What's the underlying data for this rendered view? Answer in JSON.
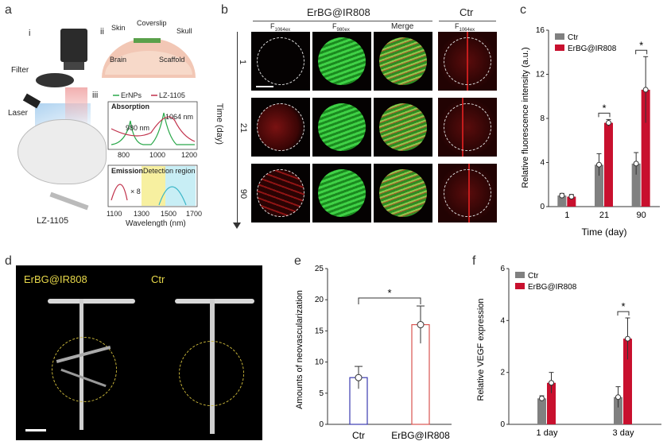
{
  "panels": {
    "a": "a",
    "b": "b",
    "c": "c",
    "d": "d",
    "e": "e",
    "f": "f"
  },
  "panel_a": {
    "i": "i",
    "ii": "ii",
    "iii": "iii",
    "filter": "Filter",
    "laser": "Laser",
    "mouse": "LZ-1105",
    "skin": "Skin",
    "coverslip": "Coverslip",
    "skull": "Skull",
    "brain": "Brain",
    "scaffold": "Scaffold",
    "legend_er": "ErNPs",
    "legend_lz": "LZ-1105",
    "absorption": "Absorption",
    "emission": "Emission",
    "nm980": "980 nm",
    "nm1064": "1064 nm",
    "detection": "Detection region",
    "times8": "× 8",
    "abs_ticks": [
      "800",
      "1000",
      "1200"
    ],
    "em_ticks": [
      "1100",
      "1300",
      "1500",
      "1700"
    ],
    "xlabel": "Wavelength (nm)"
  },
  "panel_b": {
    "group1": "ErBG@IR808",
    "group2": "Ctr",
    "col1": "F",
    "col1_sub": "1064ex",
    "col2": "F",
    "col2_sub": "980ex",
    "col3": "Merge",
    "col4": "F",
    "col4_sub": "1064ex",
    "rows": [
      "1",
      "21",
      "90"
    ],
    "ylabel": "Time (day)"
  },
  "panel_d": {
    "label1": "ErBG@IR808",
    "label2": "Ctr"
  },
  "chart_data": [
    {
      "id": "c",
      "type": "bar",
      "categories": [
        "1",
        "21",
        "90"
      ],
      "xlabel": "Time (day)",
      "ylabel": "Relative fluorescence intensity (a.u.)",
      "ylim": [
        0,
        16
      ],
      "yticks": [
        0,
        4,
        8,
        12,
        16
      ],
      "series": [
        {
          "name": "Ctr",
          "color": "#808080",
          "values": [
            1.0,
            3.8,
            3.9
          ],
          "err": [
            0.2,
            1.0,
            1.0
          ]
        },
        {
          "name": "ErBG@IR808",
          "color": "#c8102e",
          "values": [
            0.9,
            7.6,
            10.6
          ],
          "err": [
            0.2,
            0.3,
            3.0
          ]
        }
      ],
      "significance": [
        {
          "at": "21",
          "label": "*"
        },
        {
          "at": "90",
          "label": "*"
        }
      ],
      "legend": "top-left"
    },
    {
      "id": "e",
      "type": "bar",
      "categories": [
        "Ctr",
        "ErBG@IR808"
      ],
      "ylabel": "Amounts of neovascularization",
      "ylim": [
        0,
        25
      ],
      "yticks": [
        0,
        5,
        10,
        15,
        20,
        25
      ],
      "values": [
        7.5,
        16.0
      ],
      "err": [
        1.8,
        3.0
      ],
      "colors": [
        "#3b3bb0",
        "#d9534f"
      ],
      "significance": [
        {
          "label": "*"
        }
      ]
    },
    {
      "id": "f",
      "type": "bar",
      "categories": [
        "1 day",
        "3 day"
      ],
      "ylabel": "Relative VEGF expression",
      "ylim": [
        0,
        6
      ],
      "yticks": [
        0,
        2,
        4,
        6
      ],
      "series": [
        {
          "name": "Ctr",
          "color": "#808080",
          "values": [
            1.0,
            1.05
          ],
          "err": [
            0.1,
            0.4
          ]
        },
        {
          "name": "ErBG@IR808",
          "color": "#c8102e",
          "values": [
            1.6,
            3.3
          ],
          "err": [
            0.4,
            0.8
          ]
        }
      ],
      "significance": [
        {
          "at": "3 day",
          "label": "*"
        }
      ],
      "legend": "top-left"
    }
  ]
}
